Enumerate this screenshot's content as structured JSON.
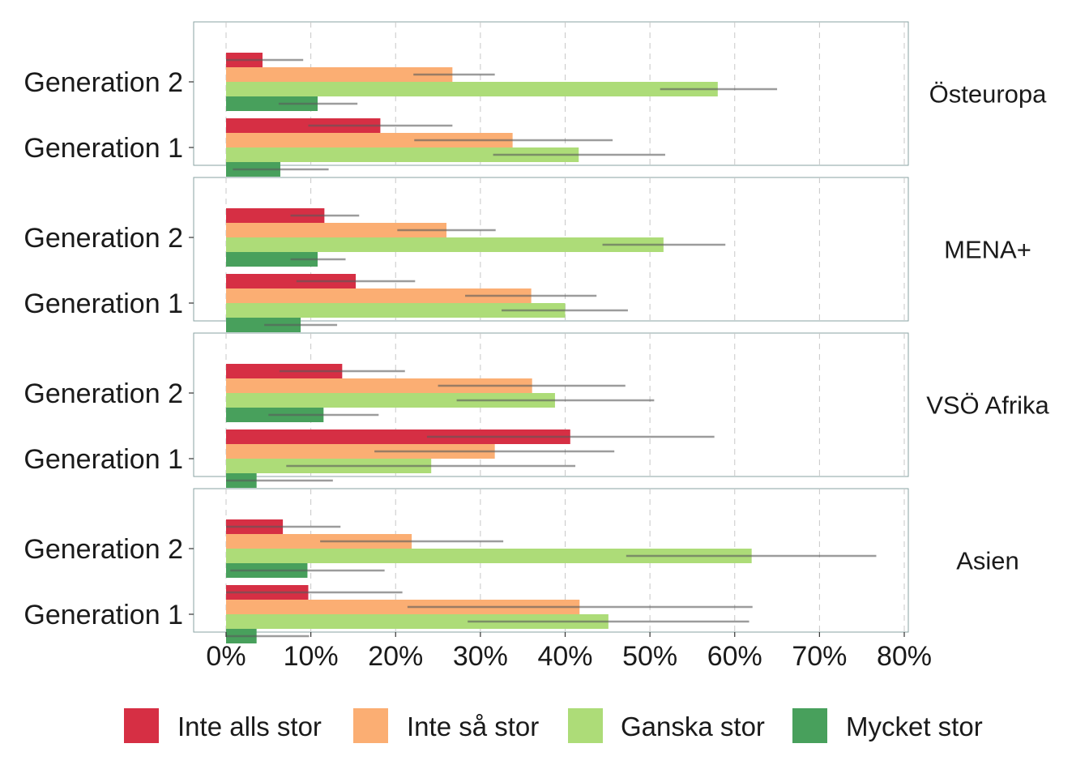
{
  "chart_data": {
    "type": "bar",
    "orientation": "horizontal",
    "facet_labels_position": "right",
    "grid": "vertical-dashed",
    "legend_position": "bottom",
    "xlim": [
      0,
      0.8
    ],
    "x_ticks": [
      {
        "value": 0,
        "label": "0%"
      },
      {
        "value": 0.1,
        "label": "10%"
      },
      {
        "value": 0.2,
        "label": "20%"
      },
      {
        "value": 0.3,
        "label": "30%"
      },
      {
        "value": 0.4,
        "label": "40%"
      },
      {
        "value": 0.5,
        "label": "50%"
      },
      {
        "value": 0.6,
        "label": "60%"
      },
      {
        "value": 0.7,
        "label": "70%"
      },
      {
        "value": 0.8,
        "label": "80%"
      }
    ],
    "categories": [
      "Generation 2",
      "Generation 1"
    ],
    "series": [
      {
        "name": "Inte alls stor",
        "color": "#d62f44"
      },
      {
        "name": "Inte så stor",
        "color": "#fbae73"
      },
      {
        "name": "Ganska stor",
        "color": "#addc78"
      },
      {
        "name": "Mycket stor",
        "color": "#48a05c"
      }
    ],
    "facets": [
      {
        "label": "Östeuropa",
        "groups": [
          {
            "category": "Generation 2",
            "values": [
              0.043,
              0.267,
              0.58,
              0.108
            ],
            "ci_low": [
              0.0,
              0.221,
              0.512,
              0.062
            ],
            "ci_high": [
              0.091,
              0.317,
              0.65,
              0.155
            ]
          },
          {
            "category": "Generation 1",
            "values": [
              0.182,
              0.338,
              0.416,
              0.064
            ],
            "ci_low": [
              0.097,
              0.222,
              0.315,
              0.008
            ],
            "ci_high": [
              0.267,
              0.456,
              0.518,
              0.121
            ]
          }
        ]
      },
      {
        "label": "MENA+",
        "groups": [
          {
            "category": "Generation 2",
            "values": [
              0.116,
              0.26,
              0.516,
              0.108
            ],
            "ci_low": [
              0.076,
              0.202,
              0.444,
              0.076
            ],
            "ci_high": [
              0.157,
              0.318,
              0.589,
              0.141
            ]
          },
          {
            "category": "Generation 1",
            "values": [
              0.153,
              0.36,
              0.4,
              0.088
            ],
            "ci_low": [
              0.083,
              0.282,
              0.325,
              0.045
            ],
            "ci_high": [
              0.223,
              0.437,
              0.474,
              0.131
            ]
          }
        ]
      },
      {
        "label": "VSÖ Afrika",
        "groups": [
          {
            "category": "Generation 2",
            "values": [
              0.137,
              0.361,
              0.388,
              0.115
            ],
            "ci_low": [
              0.063,
              0.25,
              0.272,
              0.05
            ],
            "ci_high": [
              0.211,
              0.471,
              0.505,
              0.18
            ]
          },
          {
            "category": "Generation 1",
            "values": [
              0.406,
              0.317,
              0.242,
              0.036
            ],
            "ci_low": [
              0.237,
              0.175,
              0.071,
              0.0
            ],
            "ci_high": [
              0.576,
              0.458,
              0.412,
              0.126
            ]
          }
        ]
      },
      {
        "label": "Asien",
        "groups": [
          {
            "category": "Generation 2",
            "values": [
              0.067,
              0.219,
              0.62,
              0.096
            ],
            "ci_low": [
              0.0,
              0.111,
              0.472,
              0.005
            ],
            "ci_high": [
              0.135,
              0.327,
              0.767,
              0.187
            ]
          },
          {
            "category": "Generation 1",
            "values": [
              0.097,
              0.417,
              0.451,
              0.036
            ],
            "ci_low": [
              0.0,
              0.214,
              0.285,
              0.0
            ],
            "ci_high": [
              0.208,
              0.621,
              0.617,
              0.098
            ]
          }
        ]
      }
    ]
  }
}
